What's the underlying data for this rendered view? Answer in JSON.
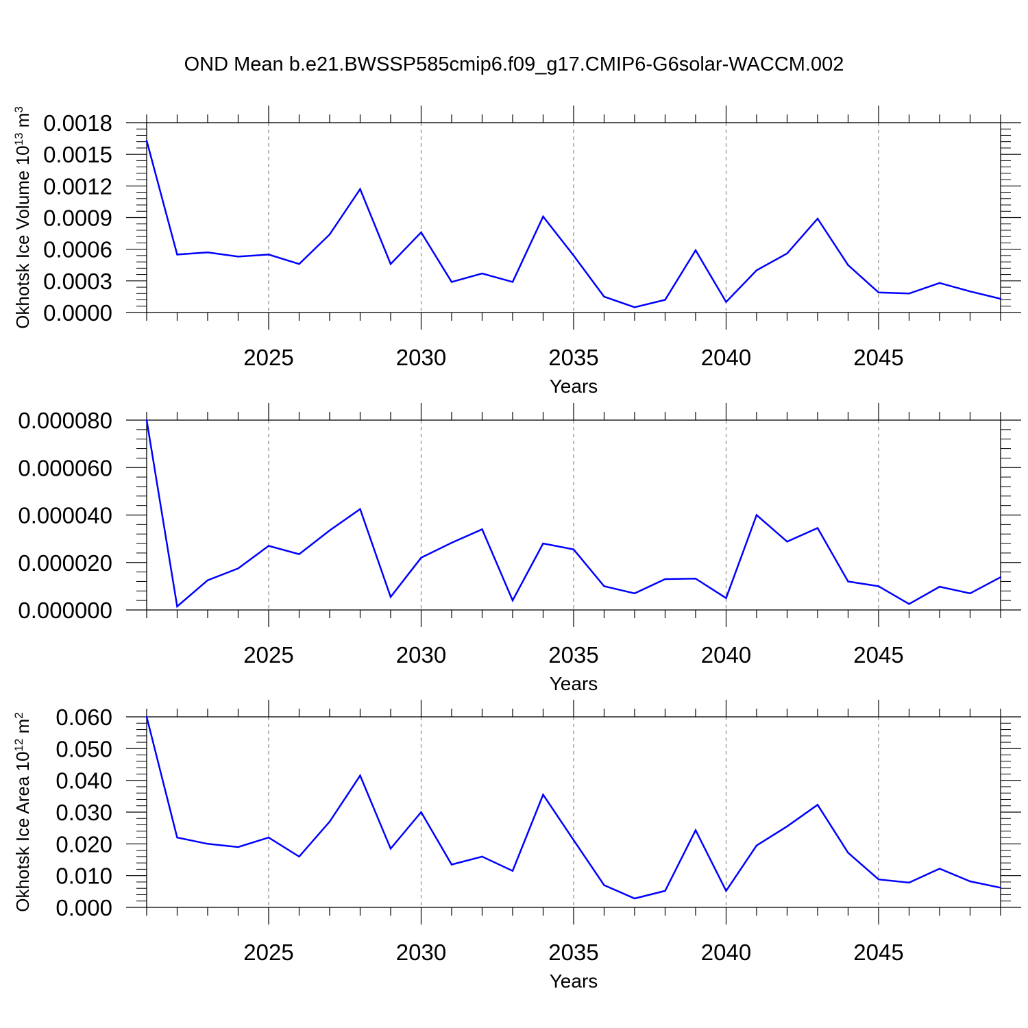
{
  "figure": {
    "title": "OND Mean b.e21.BWSSP585cmip6.f09_g17.CMIP6-G6solar-WACCM.002",
    "line_color": "#0000ff"
  },
  "chart_data": [
    {
      "type": "line",
      "xlabel": "Years",
      "ylabel": "Okhotsk Ice Volume 10",
      "ylabel_sup": "13",
      "ylabel_unit": " m",
      "ylabel_unit_sup": "3",
      "xlim": [
        2021,
        2049
      ],
      "ylim": [
        0,
        0.0018
      ],
      "x_ticks": [
        2025,
        2030,
        2035,
        2040,
        2045
      ],
      "x_tick_labels": [
        "2025",
        "2030",
        "2035",
        "2040",
        "2045"
      ],
      "y_ticks": [
        0,
        0.0003,
        0.0006,
        0.0009,
        0.0012,
        0.0015,
        0.0018
      ],
      "y_tick_labels": [
        "0.0000",
        "0.0003",
        "0.0006",
        "0.0009",
        "0.0012",
        "0.0015",
        "0.0018"
      ],
      "grid": "vertical dashed at major x ticks",
      "x": [
        2021,
        2022,
        2023,
        2024,
        2025,
        2026,
        2027,
        2028,
        2029,
        2030,
        2031,
        2032,
        2033,
        2034,
        2035,
        2036,
        2037,
        2038,
        2039,
        2040,
        2041,
        2042,
        2043,
        2044,
        2045,
        2046,
        2047,
        2048,
        2049
      ],
      "values": [
        0.00163,
        0.00055,
        0.00057,
        0.00053,
        0.00055,
        0.00046,
        0.00074,
        0.00117,
        0.00046,
        0.00076,
        0.00029,
        0.00037,
        0.00029,
        0.00091,
        0.00054,
        0.00015,
        5e-05,
        0.00012,
        0.00059,
        0.0001,
        0.0004,
        0.00056,
        0.00089,
        0.00045,
        0.00019,
        0.00018,
        0.00028,
        0.0002,
        0.00013
      ]
    },
    {
      "type": "line",
      "xlabel": "Years",
      "ylabel": "",
      "ylabel_sup": "",
      "ylabel_unit": "",
      "ylabel_unit_sup": "",
      "xlim": [
        2021,
        2049
      ],
      "ylim": [
        0,
        8e-05
      ],
      "x_ticks": [
        2025,
        2030,
        2035,
        2040,
        2045
      ],
      "x_tick_labels": [
        "2025",
        "2030",
        "2035",
        "2040",
        "2045"
      ],
      "y_ticks": [
        0,
        2e-05,
        4e-05,
        6e-05,
        8e-05
      ],
      "y_tick_labels": [
        "0.000000",
        "0.000020",
        "0.000040",
        "0.000060",
        "0.000080"
      ],
      "grid": "vertical dashed at major x ticks",
      "x": [
        2021,
        2022,
        2023,
        2024,
        2025,
        2026,
        2027,
        2028,
        2029,
        2030,
        2031,
        2032,
        2033,
        2034,
        2035,
        2036,
        2037,
        2038,
        2039,
        2040,
        2041,
        2042,
        2043,
        2044,
        2045,
        2046,
        2047,
        2048,
        2049
      ],
      "values": [
        8e-05,
        1.5e-06,
        1.25e-05,
        1.75e-05,
        2.7e-05,
        2.35e-05,
        3.35e-05,
        4.25e-05,
        5.5e-06,
        2.2e-05,
        2.83e-05,
        3.4e-05,
        4e-06,
        2.8e-05,
        2.55e-05,
        1e-05,
        7e-06,
        1.3e-05,
        1.32e-05,
        5e-06,
        4e-05,
        2.88e-05,
        3.45e-05,
        1.2e-05,
        1e-05,
        2.5e-06,
        9.8e-06,
        7e-06,
        1.38e-05
      ]
    },
    {
      "type": "line",
      "xlabel": "Years",
      "ylabel": "Okhotsk Ice Area 10",
      "ylabel_sup": "12",
      "ylabel_unit": " m",
      "ylabel_unit_sup": "2",
      "xlim": [
        2021,
        2049
      ],
      "ylim": [
        0,
        0.06
      ],
      "x_ticks": [
        2025,
        2030,
        2035,
        2040,
        2045
      ],
      "x_tick_labels": [
        "2025",
        "2030",
        "2035",
        "2040",
        "2045"
      ],
      "y_ticks": [
        0,
        0.01,
        0.02,
        0.03,
        0.04,
        0.05,
        0.06
      ],
      "y_tick_labels": [
        "0.000",
        "0.010",
        "0.020",
        "0.030",
        "0.040",
        "0.050",
        "0.060"
      ],
      "grid": "vertical dashed at major x ticks",
      "x": [
        2021,
        2022,
        2023,
        2024,
        2025,
        2026,
        2027,
        2028,
        2029,
        2030,
        2031,
        2032,
        2033,
        2034,
        2035,
        2036,
        2037,
        2038,
        2039,
        2040,
        2041,
        2042,
        2043,
        2044,
        2045,
        2046,
        2047,
        2048,
        2049
      ],
      "values": [
        0.06,
        0.022,
        0.02,
        0.019,
        0.022,
        0.016,
        0.027,
        0.0415,
        0.0185,
        0.03,
        0.0135,
        0.016,
        0.0115,
        0.0355,
        0.0212,
        0.007,
        0.0028,
        0.0052,
        0.0243,
        0.0052,
        0.0195,
        0.0255,
        0.0323,
        0.0172,
        0.0088,
        0.0078,
        0.0122,
        0.0082,
        0.0062
      ]
    }
  ]
}
